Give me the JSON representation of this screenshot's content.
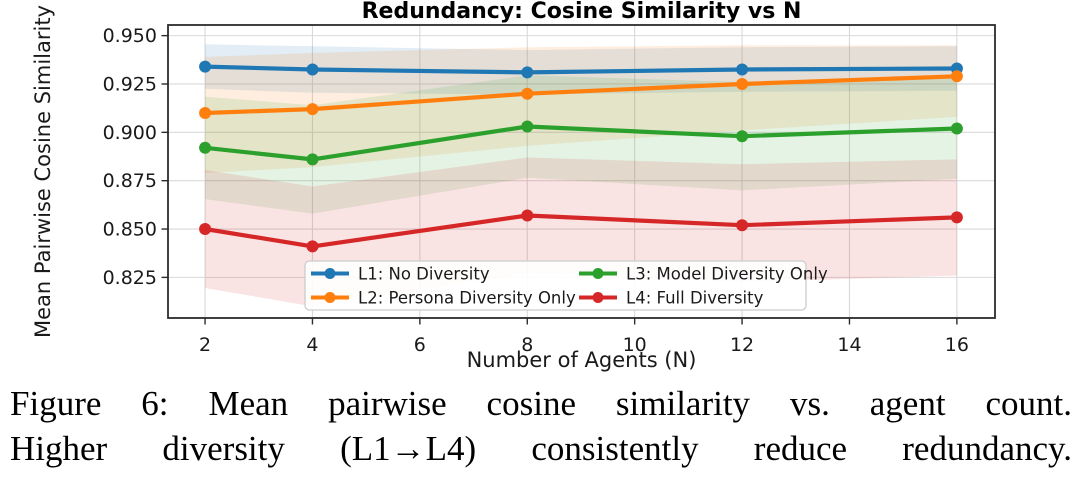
{
  "caption": {
    "line1": "Figure 6: Mean pairwise cosine similarity vs. agent count.",
    "line2": "Higher diversity (L1→L4) consistently reduce redundancy."
  },
  "chart_data": {
    "type": "line",
    "title": "Redundancy: Cosine Similarity vs N",
    "xlabel": "Number of Agents (N)",
    "ylabel": "Mean Pairwise Cosine Similarity",
    "x": [
      2,
      4,
      8,
      12,
      16
    ],
    "xticks": [
      2,
      4,
      6,
      8,
      10,
      12,
      14,
      16
    ],
    "yticks": [
      0.825,
      0.85,
      0.875,
      0.9,
      0.925,
      0.95
    ],
    "xlim": [
      1.31,
      16.71
    ],
    "ylim": [
      0.804,
      0.9555
    ],
    "grid": true,
    "legend_position": "lower center, 2 columns",
    "band_opacity": 0.13,
    "series": [
      {
        "id": "l1",
        "name": "L1: No Diversity",
        "color": "#1f77b4",
        "values": [
          0.934,
          0.9325,
          0.931,
          0.9325,
          0.933
        ],
        "band_lower": [
          0.9225,
          0.9205,
          0.9195,
          0.921,
          0.9215
        ],
        "band_upper": [
          0.9455,
          0.9445,
          0.9425,
          0.944,
          0.9445
        ]
      },
      {
        "id": "l2",
        "name": "L2: Persona Diversity Only",
        "color": "#ff7f0e",
        "values": [
          0.91,
          0.912,
          0.92,
          0.925,
          0.929
        ],
        "band_lower": [
          0.879,
          0.882,
          0.893,
          0.901,
          0.908
        ],
        "band_upper": [
          0.939,
          0.941,
          0.944,
          0.945,
          0.945
        ]
      },
      {
        "id": "l3",
        "name": "L3: Model Diversity Only",
        "color": "#2ca02c",
        "values": [
          0.892,
          0.886,
          0.903,
          0.898,
          0.902
        ],
        "band_lower": [
          0.8655,
          0.858,
          0.8765,
          0.87,
          0.876
        ],
        "band_upper": [
          0.9185,
          0.914,
          0.9295,
          0.926,
          0.928
        ]
      },
      {
        "id": "l4",
        "name": "L4: Full Diversity",
        "color": "#d62728",
        "values": [
          0.85,
          0.841,
          0.857,
          0.852,
          0.856
        ],
        "band_lower": [
          0.8195,
          0.81,
          0.827,
          0.8225,
          0.826
        ],
        "band_upper": [
          0.8805,
          0.872,
          0.887,
          0.8835,
          0.886
        ]
      }
    ]
  }
}
